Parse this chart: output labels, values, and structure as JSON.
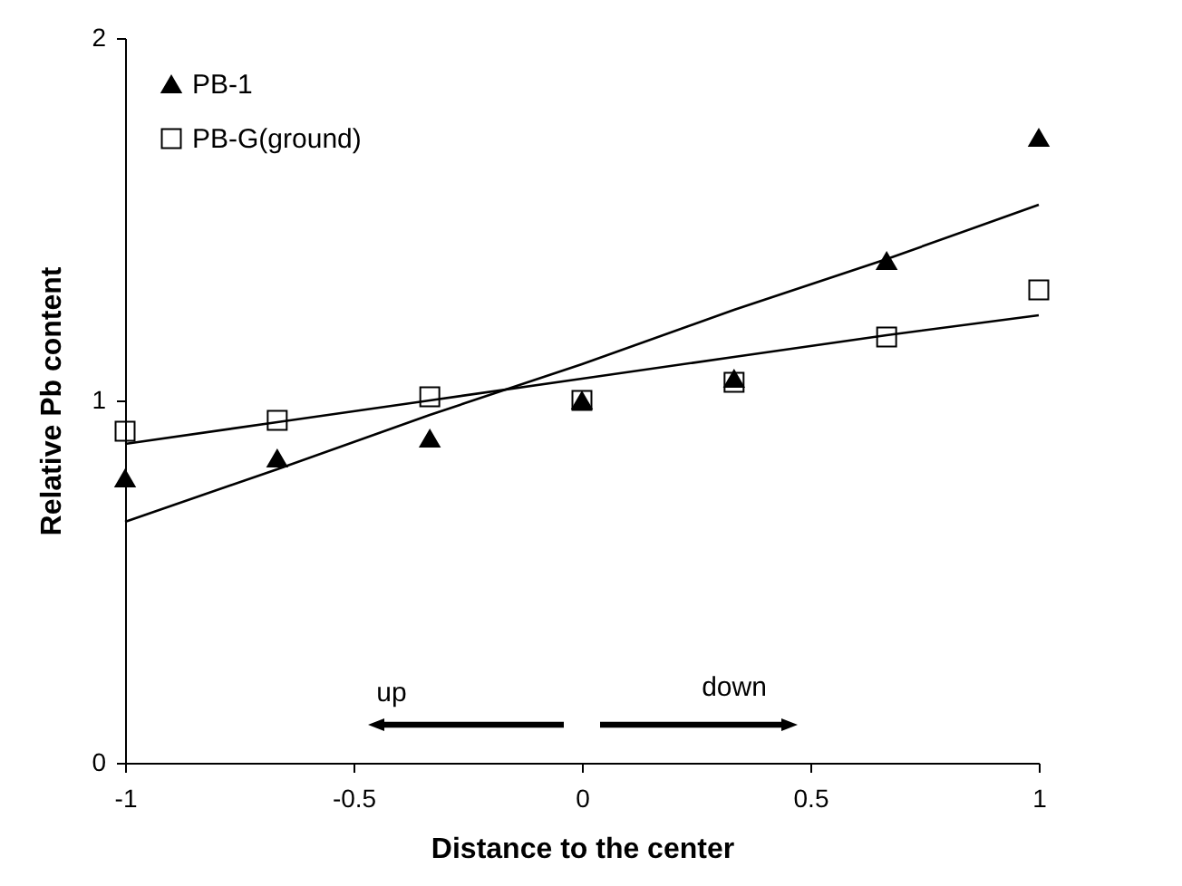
{
  "chart_data": {
    "type": "scatter",
    "xlabel": "Distance to the center",
    "ylabel": "Relative Pb content",
    "xlim": [
      -1,
      1
    ],
    "xticks": [
      -1,
      -0.5,
      0,
      0.5,
      1
    ],
    "ylim": [
      0,
      2
    ],
    "yticks": [
      0,
      1,
      2
    ],
    "grid": false,
    "legend": "top left",
    "x": [
      -1,
      -0.667,
      -0.333,
      0,
      0.333,
      0.667,
      1
    ],
    "series": [
      {
        "name": "PB-1",
        "color": "#000000",
        "marker": "triangle",
        "values": [
          0.785,
          0.84,
          0.895,
          1.0,
          1.06,
          1.385,
          1.725
        ]
      },
      {
        "name": "PB-G(ground)",
        "color": "#000000",
        "marker": "square",
        "values": [
          0.915,
          0.945,
          1.01,
          1.0,
          1.05,
          1.175,
          1.305
        ]
      },
      {
        "type": "line",
        "color": "#000000",
        "values": [
          0.665,
          0.81,
          0.96,
          1.1,
          1.25,
          1.39,
          1.54
        ]
      },
      {
        "type": "line",
        "color": "#000000",
        "values": [
          0.88,
          0.94,
          1.0,
          1.06,
          1.12,
          1.18,
          1.235
        ]
      }
    ],
    "annotations": [
      "up",
      "down"
    ]
  }
}
